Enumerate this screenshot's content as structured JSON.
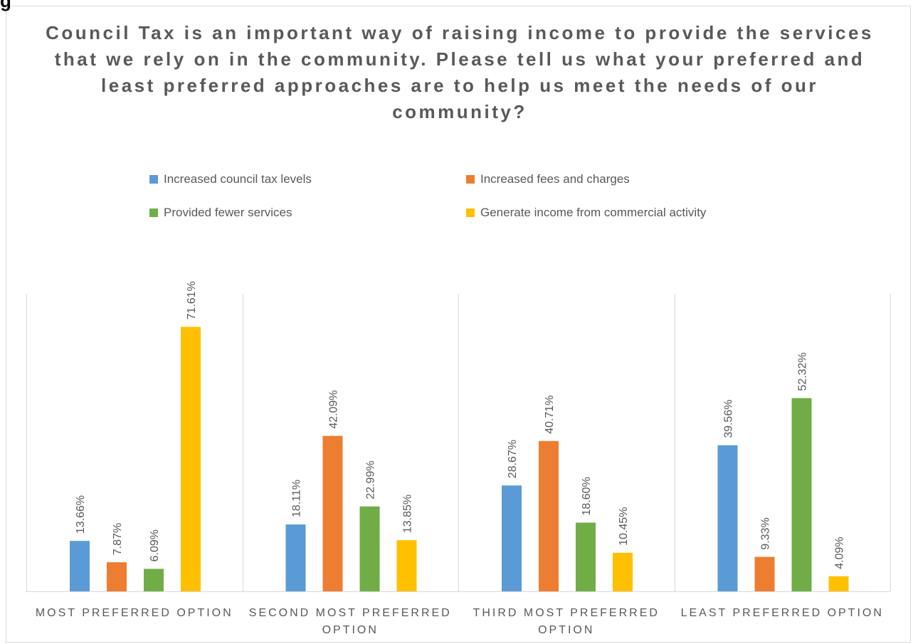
{
  "corner_glyph": "g",
  "chart_data": {
    "type": "bar",
    "title": "Council Tax is an important way of raising income to provide the services that we rely on in the community. Please tell us what your preferred and least preferred approaches are to help us meet the needs of our community?",
    "categories": [
      [
        "MOST PREFERRED OPTION"
      ],
      [
        "SECOND MOST PREFERRED",
        "OPTION"
      ],
      [
        "THIRD MOST PREFERRED",
        "OPTION"
      ],
      [
        "LEAST PREFERRED OPTION"
      ]
    ],
    "series": [
      {
        "name": "Increased council tax levels",
        "color": "#5b9bd5",
        "values": [
          13.66,
          18.11,
          28.67,
          39.56
        ],
        "labels": [
          "13.66%",
          "18.11%",
          "28.67%",
          "39.56%"
        ]
      },
      {
        "name": "Increased fees and charges",
        "color": "#ed7d31",
        "values": [
          7.87,
          42.09,
          40.71,
          9.33
        ],
        "labels": [
          "7.87%",
          "42.09%",
          "40.71%",
          "9.33%"
        ]
      },
      {
        "name": "Provided fewer services",
        "color": "#70ad47",
        "values": [
          6.09,
          22.99,
          18.6,
          52.32
        ],
        "labels": [
          "6.09%",
          "22.99%",
          "18.60%",
          "52.32%"
        ]
      },
      {
        "name": "Generate income from commercial activity",
        "color": "#ffc000",
        "values": [
          71.61,
          13.85,
          10.45,
          4.09
        ],
        "labels": [
          "71.61%",
          "13.85%",
          "10.45%",
          "4.09%"
        ]
      }
    ],
    "legend_position": "top",
    "grid": false,
    "ylim": [
      0,
      80
    ]
  }
}
